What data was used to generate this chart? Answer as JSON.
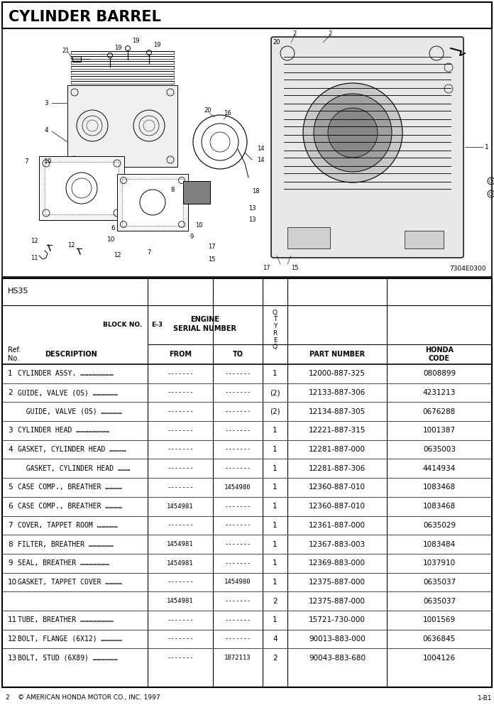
{
  "title": "CYLINDER BARREL",
  "diagram_ref": "7304E0300",
  "model": "HS35",
  "block_no": "E-3",
  "footer_left": "2    © AMERICAN HONDA MOTOR CO., INC. 1997",
  "footer_right": "1-B1",
  "rows": [
    {
      "ref": "1",
      "desc": "CYLINDER ASSY. ……………………",
      "from": "-------",
      "to": "-------",
      "qty": "1",
      "part": "12000-887-325",
      "code": "0808899"
    },
    {
      "ref": "2",
      "desc": "GUIDE, VALVE (OS) ………………",
      "from": "-------",
      "to": "-------",
      "qty": "(2)",
      "part": "12133-887-306",
      "code": "4231213"
    },
    {
      "ref": "",
      "desc": "  GUIDE, VALVE (OS) ……………",
      "from": "-------",
      "to": "-------",
      "qty": "(2)",
      "part": "12134-887-305",
      "code": "0676288"
    },
    {
      "ref": "3",
      "desc": "CYLINDER HEAD ……………………",
      "from": "-------",
      "to": "-------",
      "qty": "1",
      "part": "12221-887-315",
      "code": "1001387"
    },
    {
      "ref": "4",
      "desc": "GASKET, CYLINDER HEAD …………",
      "from": "-------",
      "to": "-------",
      "qty": "1",
      "part": "12281-887-000",
      "code": "0635003"
    },
    {
      "ref": "",
      "desc": "  GASKET, CYLINDER HEAD ………",
      "from": "-------",
      "to": "-------",
      "qty": "1",
      "part": "12281-887-306",
      "code": "4414934"
    },
    {
      "ref": "5",
      "desc": "CASE COMP., BREATHER …………",
      "from": "-------",
      "to": "1454980",
      "qty": "1",
      "part": "12360-887-010",
      "code": "1083468"
    },
    {
      "ref": "6",
      "desc": "CASE COMP., BREATHER …………",
      "from": "1454981",
      "to": "-------",
      "qty": "1",
      "part": "12360-887-010",
      "code": "1083468"
    },
    {
      "ref": "7",
      "desc": "COVER, TAPPET ROOM ……………",
      "from": "-------",
      "to": "-------",
      "qty": "1",
      "part": "12361-887-000",
      "code": "0635029"
    },
    {
      "ref": "8",
      "desc": "FILTER, BREATHER ………………",
      "from": "1454981",
      "to": "-------",
      "qty": "1",
      "part": "12367-883-003",
      "code": "1083484"
    },
    {
      "ref": "9",
      "desc": "SEAL, BREATHER …………………",
      "from": "1454981",
      "to": "-------",
      "qty": "1",
      "part": "12369-883-000",
      "code": "1037910"
    },
    {
      "ref": "10",
      "desc": "GASKET, TAPPET COVER …………",
      "from": "-------",
      "to": "1454980",
      "qty": "1",
      "part": "12375-887-000",
      "code": "0635037"
    },
    {
      "ref": "",
      "desc": "",
      "from": "1454981",
      "to": "-------",
      "qty": "2",
      "part": "12375-887-000",
      "code": "0635037"
    },
    {
      "ref": "11",
      "desc": "TUBE, BREATHER ……………………",
      "from": "-------",
      "to": "-------",
      "qty": "1",
      "part": "15721-730-000",
      "code": "1001569"
    },
    {
      "ref": "12",
      "desc": "BOLT, FLANGE (6X12) ……………",
      "from": "-------",
      "to": "-------",
      "qty": "4",
      "part": "90013-883-000",
      "code": "0636845"
    },
    {
      "ref": "13",
      "desc": "BOLT, STUD (6X89) ………………",
      "from": "-------",
      "to": "1872113",
      "qty": "2",
      "part": "90043-883-680",
      "code": "1004126"
    }
  ]
}
